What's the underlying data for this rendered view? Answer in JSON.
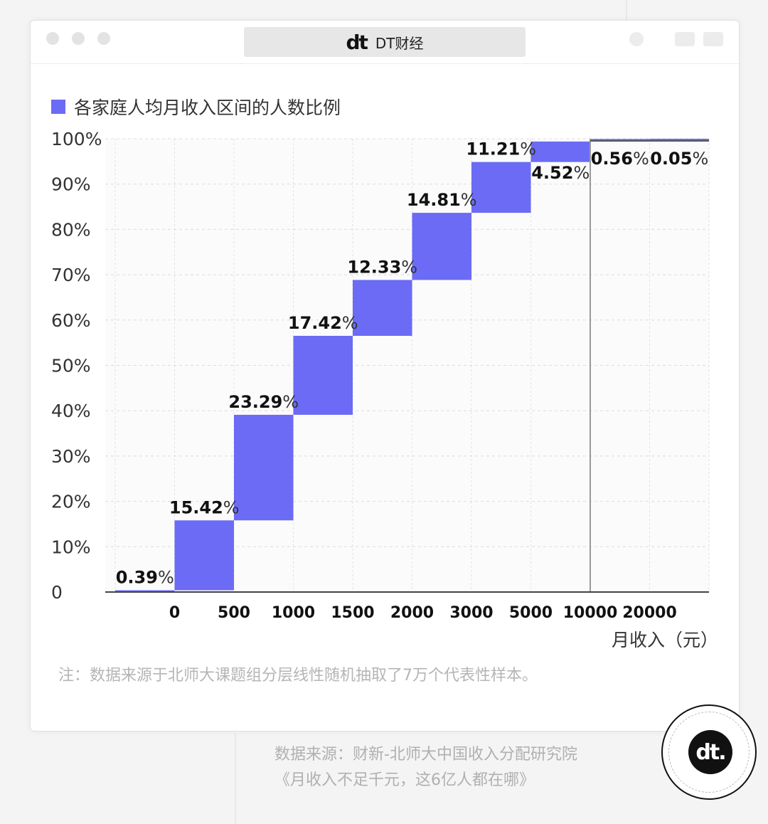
{
  "window": {
    "brand_logo": "dt",
    "brand_name": "DT财经"
  },
  "legend": {
    "label": "各家庭人均月收入区间的人数比例",
    "color": "#6b6bf5"
  },
  "chart_data": {
    "type": "waterfall",
    "title": "各家庭人均月收入区间的人数比例",
    "xlabel": "月收入（元）",
    "ylabel": "",
    "ylim": [
      0,
      100
    ],
    "y_ticks": [
      "0",
      "10%",
      "20%",
      "30%",
      "40%",
      "50%",
      "60%",
      "70%",
      "80%",
      "90%",
      "100%"
    ],
    "x_boundaries": [
      "0",
      "500",
      "1000",
      "1500",
      "2000",
      "3000",
      "5000",
      "10000",
      "20000"
    ],
    "bars": [
      {
        "range": "<0",
        "value": 0.39,
        "num": "0.39",
        "pct": "%"
      },
      {
        "range": "0-500",
        "value": 15.42,
        "num": "15.42",
        "pct": "%"
      },
      {
        "range": "500-1000",
        "value": 23.29,
        "num": "23.29",
        "pct": "%"
      },
      {
        "range": "1000-1500",
        "value": 17.42,
        "num": "17.42",
        "pct": "%"
      },
      {
        "range": "1500-2000",
        "value": 12.33,
        "num": "12.33",
        "pct": "%"
      },
      {
        "range": "2000-3000",
        "value": 14.81,
        "num": "14.81",
        "pct": "%"
      },
      {
        "range": "3000-5000",
        "value": 11.21,
        "num": "11.21",
        "pct": "%"
      },
      {
        "range": "5000-10000",
        "value": 4.52,
        "num": "4.52",
        "pct": "%"
      },
      {
        "range": "10000-20000",
        "value": 0.56,
        "num": "0.56",
        "pct": "%"
      },
      {
        "range": ">20000",
        "value": 0.05,
        "num": "0.05",
        "pct": "%"
      }
    ],
    "bar_color": "#6b6bf5",
    "grid": true
  },
  "note": "注：数据来源于北师大课题组分层线性随机抽取了7万个代表性样本。",
  "source": {
    "line1": "数据来源：财新-北师大中国收入分配研究院",
    "line2": "《月收入不足千元，这6亿人都在哪》"
  },
  "badge": {
    "logo": "dt."
  }
}
